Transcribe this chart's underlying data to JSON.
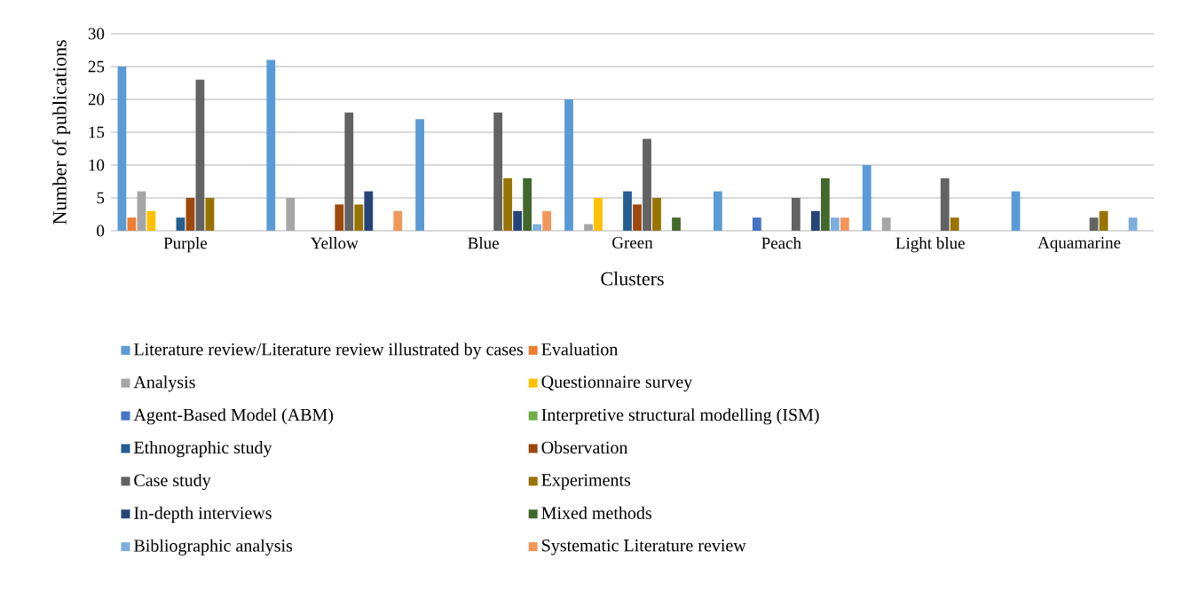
{
  "chart_data": {
    "type": "bar",
    "xlabel": "Clusters",
    "ylabel": "Number of publications",
    "categories": [
      "Purple",
      "Yellow",
      "Blue",
      "Green",
      "Peach",
      "Light blue",
      "Aquamarine"
    ],
    "ylim": [
      0,
      30
    ],
    "yticks": [
      0,
      5,
      10,
      15,
      20,
      25,
      30
    ],
    "grid": "y",
    "legend": "bottom",
    "series": [
      {
        "name": "Literature review/Literature review illustrated by cases",
        "color": "#5b9bd5",
        "values": [
          25,
          26,
          17,
          20,
          6,
          10,
          6
        ]
      },
      {
        "name": "Evaluation",
        "color": "#ed7d31",
        "values": [
          2,
          0,
          0,
          0,
          0,
          0,
          0
        ]
      },
      {
        "name": "Analysis",
        "color": "#a5a5a5",
        "values": [
          6,
          5,
          0,
          1,
          0,
          2,
          0
        ]
      },
      {
        "name": "Questionnaire survey",
        "color": "#ffc000",
        "values": [
          3,
          0,
          0,
          5,
          0,
          0,
          0
        ]
      },
      {
        "name": "Agent-Based Model (ABM)",
        "color": "#4472c4",
        "values": [
          0,
          0,
          0,
          0,
          2,
          0,
          0
        ]
      },
      {
        "name": "Interpretive structural modelling (ISM)",
        "color": "#70ad47",
        "values": [
          0,
          0,
          0,
          0,
          0,
          0,
          0
        ]
      },
      {
        "name": "Ethnographic study",
        "color": "#255e91",
        "values": [
          2,
          0,
          0,
          6,
          0,
          0,
          0
        ]
      },
      {
        "name": "Observation",
        "color": "#9e480e",
        "values": [
          5,
          4,
          0,
          4,
          0,
          0,
          0
        ]
      },
      {
        "name": "Case study",
        "color": "#636363",
        "values": [
          23,
          18,
          18,
          14,
          5,
          8,
          2
        ]
      },
      {
        "name": "Experiments",
        "color": "#997300",
        "values": [
          5,
          4,
          8,
          5,
          0,
          2,
          3
        ]
      },
      {
        "name": "In-depth interviews",
        "color": "#264478",
        "values": [
          0,
          6,
          3,
          0,
          3,
          0,
          0
        ]
      },
      {
        "name": "Mixed methods",
        "color": "#43682b",
        "values": [
          0,
          0,
          8,
          2,
          8,
          0,
          0
        ]
      },
      {
        "name": "Bibliographic analysis",
        "color": "#7cafdd",
        "values": [
          0,
          0,
          1,
          0,
          2,
          0,
          2
        ]
      },
      {
        "name": "Systematic Literature review",
        "color": "#f1975a",
        "values": [
          0,
          3,
          3,
          0,
          2,
          0,
          0
        ]
      }
    ]
  }
}
